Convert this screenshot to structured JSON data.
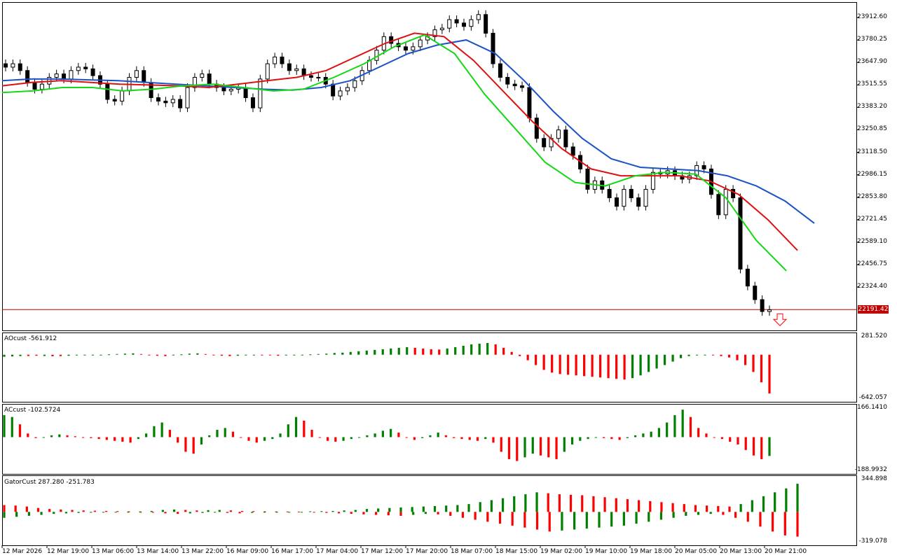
{
  "colors": {
    "alligator_jaw": "#1a52c8",
    "alligator_teeth": "#e01010",
    "alligator_lips": "#14d814",
    "up_bar": "#008000",
    "down_bar": "#ff0000",
    "current_price_line": "#c00000"
  },
  "price_panel": {
    "price_labels": [
      "23912.60",
      "23780.25",
      "23647.90",
      "23515.55",
      "23383.20",
      "23250.85",
      "23118.50",
      "22986.15",
      "22853.80",
      "22721.45",
      "22589.10",
      "22456.75",
      "22324.40"
    ],
    "current_price": "22191.42",
    "signal_icon": "down-arrow-icon"
  },
  "ao_panel": {
    "label": "AOcust -561.912",
    "max": "281.520",
    "min": "-642.057"
  },
  "ac_panel": {
    "label": "ACcust -102.5724",
    "max": "166.1410",
    "min": "-188.9932"
  },
  "gator_panel": {
    "label": "GatorCust 287.280 -251.783",
    "max": "344.898",
    "min": "-319.078"
  },
  "time_labels": [
    "12 Mar 2026",
    "12 Mar 19:00",
    "13 Mar 06:00",
    "13 Mar 14:00",
    "13 Mar 22:00",
    "16 Mar 09:00",
    "16 Mar 17:00",
    "17 Mar 04:00",
    "17 Mar 12:00",
    "17 Mar 20:00",
    "18 Mar 07:00",
    "18 Mar 15:00",
    "19 Mar 02:00",
    "19 Mar 10:00",
    "19 Mar 18:00",
    "20 Mar 05:00",
    "20 Mar 13:00",
    "20 Mar 21:00"
  ],
  "chart_data": [
    {
      "type": "candlestick",
      "series": [
        {
          "name": "price",
          "values": [
            23620,
            23640,
            23600,
            23530,
            23490,
            23520,
            23560,
            23580,
            23550,
            23600,
            23620,
            23610,
            23570,
            23520,
            23430,
            23420,
            23480,
            23560,
            23600,
            23530,
            23440,
            23420,
            23410,
            23430,
            23380,
            23500,
            23560,
            23580,
            23520,
            23500,
            23480,
            23490,
            23500,
            23440,
            23380,
            23550,
            23640,
            23680,
            23640,
            23600,
            23610,
            23570,
            23560,
            23560,
            23520,
            23450,
            23480,
            23500,
            23540,
            23600,
            23660,
            23720,
            23800,
            23760,
            23740,
            23720,
            23740,
            23780,
            23800,
            23840,
            23850,
            23900,
            23880,
            23860,
            23900,
            23930,
            23820,
            23640,
            23560,
            23520,
            23510,
            23500,
            23320,
            23200,
            23150,
            23200,
            23250,
            23150,
            23100,
            23020,
            22900,
            22950,
            22900,
            22850,
            22800,
            22900,
            22850,
            22800,
            22900,
            23000,
            22990,
            23010,
            22980,
            22960,
            22980,
            23040,
            23020,
            22870,
            22750,
            22900,
            22850,
            22430,
            22330,
            22250,
            22180,
            22190
          ]
        },
        {
          "name": "alligator_jaw",
          "values": [
            23540,
            23550,
            23550,
            23545,
            23540,
            23530,
            23520,
            23510,
            23500,
            23490,
            23485,
            23500,
            23540,
            23620,
            23700,
            23750,
            23780,
            23700,
            23540,
            23360,
            23200,
            23080,
            23030,
            23020,
            23010,
            22980,
            22920,
            22830,
            22700
          ]
        },
        {
          "name": "alligator_teeth",
          "values": [
            23510,
            23530,
            23540,
            23530,
            23520,
            23515,
            23510,
            23500,
            23520,
            23540,
            23560,
            23600,
            23680,
            23760,
            23820,
            23800,
            23660,
            23480,
            23300,
            23140,
            23020,
            22980,
            22980,
            22980,
            22950,
            22870,
            22720,
            22540
          ]
        },
        {
          "name": "alligator_lips",
          "values": [
            23470,
            23480,
            23500,
            23500,
            23480,
            23490,
            23510,
            23520,
            23500,
            23480,
            23490,
            23560,
            23640,
            23740,
            23810,
            23700,
            23460,
            23260,
            23060,
            22940,
            22920,
            22980,
            23000,
            22990,
            22850,
            22600,
            22420
          ]
        }
      ],
      "ylim": [
        22191.42,
        23912.6
      ]
    },
    {
      "type": "bar",
      "series": [
        {
          "name": "AOcust",
          "values": [
            -30,
            -25,
            -20,
            -18,
            -15,
            -18,
            -22,
            -20,
            -15,
            -10,
            -8,
            -5,
            0,
            5,
            10,
            15,
            20,
            10,
            -5,
            -15,
            -20,
            -10,
            5,
            15,
            20,
            10,
            -5,
            -15,
            -20,
            -15,
            -5,
            0,
            -5,
            -10,
            -15,
            -10,
            -5,
            0,
            5,
            10,
            15,
            25,
            30,
            40,
            50,
            60,
            70,
            80,
            90,
            100,
            110,
            100,
            90,
            80,
            75,
            90,
            110,
            130,
            150,
            160,
            170,
            150,
            100,
            40,
            -20,
            -80,
            -150,
            -220,
            -260,
            -280,
            -290,
            -300,
            -310,
            -320,
            -330,
            -340,
            -350,
            -360,
            -340,
            -300,
            -250,
            -200,
            -150,
            -100,
            -50,
            -20,
            -10,
            -5,
            -10,
            -20,
            -40,
            -80,
            -150,
            -250,
            -400,
            -561.912
          ],
          "colors": [
            "up",
            "up",
            "up",
            "down",
            "down",
            "up",
            "down",
            "down",
            "up",
            "up",
            "up",
            "up",
            "up",
            "up",
            "up",
            "up",
            "up",
            "down",
            "down",
            "down",
            "down",
            "up",
            "up",
            "up",
            "up",
            "down",
            "down",
            "down",
            "down",
            "up",
            "up",
            "up",
            "down",
            "down",
            "down",
            "up",
            "up",
            "up",
            "up",
            "up",
            "up",
            "up",
            "up",
            "up",
            "up",
            "up",
            "up",
            "up",
            "up",
            "up",
            "up",
            "down",
            "down",
            "down",
            "down",
            "up",
            "up",
            "up",
            "up",
            "up",
            "up",
            "down",
            "down",
            "down",
            "down",
            "down",
            "down",
            "down",
            "down",
            "down",
            "down",
            "down",
            "down",
            "down",
            "down",
            "down",
            "down",
            "down",
            "up",
            "up",
            "up",
            "up",
            "up",
            "up",
            "up",
            "up",
            "up",
            "up",
            "down",
            "down",
            "down",
            "down",
            "down",
            "down",
            "down",
            "down"
          ]
        }
      ],
      "ylim": [
        -642.057,
        281.52
      ]
    },
    {
      "type": "bar",
      "series": [
        {
          "name": "ACcust",
          "values": [
            120,
            110,
            70,
            20,
            -5,
            0,
            10,
            15,
            10,
            5,
            0,
            -5,
            -10,
            -15,
            -20,
            -25,
            -30,
            -10,
            20,
            60,
            80,
            40,
            -30,
            -80,
            -90,
            -40,
            10,
            40,
            50,
            30,
            0,
            -20,
            -30,
            -20,
            -10,
            20,
            70,
            110,
            90,
            40,
            0,
            -20,
            -25,
            -20,
            -10,
            0,
            10,
            20,
            35,
            45,
            25,
            0,
            -15,
            -5,
            10,
            25,
            10,
            -5,
            -10,
            -15,
            -20,
            -10,
            -30,
            -80,
            -120,
            -130,
            -110,
            -90,
            -100,
            -110,
            -120,
            -80,
            -40,
            -20,
            -10,
            0,
            -5,
            -10,
            -15,
            -5,
            10,
            20,
            30,
            50,
            80,
            120,
            150,
            110,
            50,
            20,
            0,
            -10,
            -25,
            -40,
            -70,
            -100,
            -120,
            -102.5724
          ],
          "colors": [
            "up",
            "up",
            "down",
            "down",
            "down",
            "up",
            "up",
            "up",
            "down",
            "down",
            "down",
            "down",
            "down",
            "down",
            "down",
            "down",
            "down",
            "up",
            "up",
            "up",
            "up",
            "down",
            "down",
            "down",
            "down",
            "up",
            "up",
            "up",
            "up",
            "down",
            "down",
            "down",
            "down",
            "up",
            "up",
            "up",
            "up",
            "up",
            "down",
            "down",
            "down",
            "down",
            "down",
            "up",
            "up",
            "up",
            "up",
            "up",
            "up",
            "up",
            "down",
            "down",
            "down",
            "up",
            "up",
            "up",
            "down",
            "down",
            "down",
            "down",
            "down",
            "up",
            "down",
            "down",
            "down",
            "down",
            "up",
            "up",
            "down",
            "down",
            "down",
            "up",
            "up",
            "up",
            "up",
            "up",
            "down",
            "down",
            "down",
            "up",
            "up",
            "up",
            "up",
            "up",
            "up",
            "up",
            "up",
            "down",
            "down",
            "down",
            "down",
            "down",
            "down",
            "down",
            "down",
            "down",
            "down",
            "up"
          ]
        }
      ],
      "ylim": [
        -188.9932,
        166.141
      ]
    },
    {
      "type": "bar",
      "series": [
        {
          "name": "GatorCust upper",
          "values": [
            70,
            65,
            55,
            40,
            30,
            25,
            20,
            15,
            12,
            10,
            8,
            6,
            5,
            10,
            20,
            25,
            20,
            15,
            18,
            20,
            15,
            10,
            8,
            6,
            5,
            4,
            3,
            6,
            8,
            10,
            15,
            20,
            30,
            35,
            40,
            45,
            50,
            55,
            60,
            65,
            70,
            80,
            100,
            120,
            140,
            160,
            180,
            200,
            190,
            180,
            175,
            170,
            160,
            150,
            140,
            130,
            120,
            110,
            100,
            90,
            80,
            70,
            65,
            60,
            55,
            80,
            120,
            160,
            200,
            240,
            287.28
          ],
          "colors": [
            "down",
            "down",
            "down",
            "down",
            "down",
            "down",
            "down",
            "down",
            "down",
            "down",
            "down",
            "down",
            "down",
            "up",
            "up",
            "up",
            "down",
            "down",
            "up",
            "up",
            "down",
            "down",
            "down",
            "down",
            "down",
            "down",
            "down",
            "up",
            "up",
            "up",
            "up",
            "up",
            "up",
            "up",
            "up",
            "up",
            "up",
            "up",
            "up",
            "up",
            "up",
            "up",
            "up",
            "up",
            "up",
            "up",
            "up",
            "up",
            "down",
            "down",
            "down",
            "down",
            "down",
            "down",
            "down",
            "down",
            "down",
            "down",
            "down",
            "down",
            "down",
            "down",
            "down",
            "down",
            "down",
            "up",
            "up",
            "up",
            "up",
            "up",
            "up"
          ]
        },
        {
          "name": "GatorCust lower",
          "values": [
            -60,
            -50,
            -40,
            -30,
            -20,
            -15,
            -10,
            -8,
            -6,
            -5,
            -4,
            -3,
            -8,
            -15,
            -20,
            -15,
            -10,
            -5,
            -10,
            -15,
            -10,
            -5,
            -4,
            -3,
            -2,
            -5,
            -10,
            -15,
            -20,
            -25,
            -30,
            -35,
            -40,
            -30,
            -20,
            -25,
            -40,
            -60,
            -80,
            -100,
            -120,
            -140,
            -160,
            -180,
            -200,
            -190,
            -180,
            -170,
            -160,
            -150,
            -140,
            -120,
            -100,
            -80,
            -60,
            -40,
            -30,
            -20,
            -30,
            -60,
            -100,
            -150,
            -200,
            -240,
            -251.783
          ],
          "colors": [
            "up",
            "up",
            "up",
            "up",
            "up",
            "up",
            "up",
            "up",
            "up",
            "up",
            "up",
            "up",
            "down",
            "down",
            "down",
            "up",
            "up",
            "up",
            "down",
            "down",
            "up",
            "up",
            "up",
            "up",
            "up",
            "down",
            "down",
            "down",
            "down",
            "down",
            "down",
            "down",
            "down",
            "up",
            "up",
            "down",
            "down",
            "down",
            "down",
            "down",
            "down",
            "down",
            "down",
            "down",
            "down",
            "up",
            "up",
            "up",
            "up",
            "up",
            "up",
            "up",
            "up",
            "up",
            "up",
            "up",
            "up",
            "up",
            "down",
            "down",
            "down",
            "down",
            "down",
            "down",
            "down"
          ]
        }
      ],
      "ylim": [
        -319.078,
        344.898
      ]
    }
  ]
}
